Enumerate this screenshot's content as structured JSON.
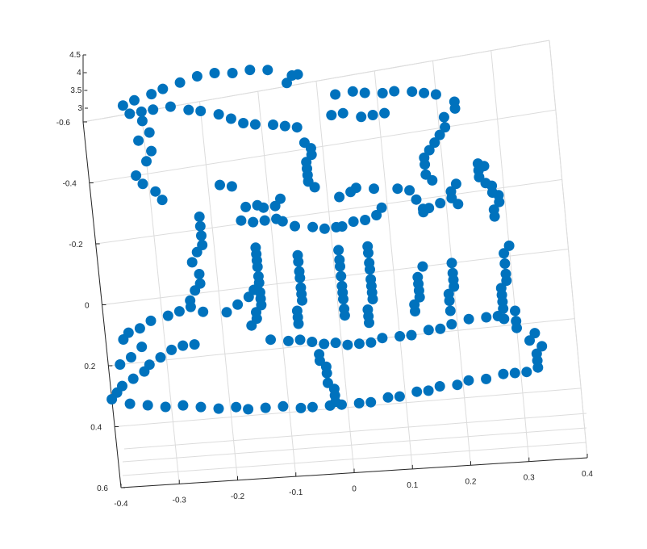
{
  "chart_data": {
    "type": "scatter",
    "title": "",
    "xlabel": "",
    "ylabel": "",
    "zlabel": "",
    "grid": true,
    "marker_color": "#0072BD",
    "axis_color": "#262626",
    "grid_color": "#dcdcdc",
    "xlim": [
      -0.4,
      0.4
    ],
    "ylim": [
      -0.6,
      0.6
    ],
    "zlim": [
      3,
      4.5
    ],
    "x_ticks": [
      {
        "v": 0.4,
        "label": "0.4"
      },
      {
        "v": 0.3,
        "label": "0.3"
      },
      {
        "v": 0.2,
        "label": "0.2"
      },
      {
        "v": 0.1,
        "label": "0.1"
      },
      {
        "v": 0,
        "label": "0"
      },
      {
        "v": -0.1,
        "label": "-0.1"
      },
      {
        "v": -0.2,
        "label": "-0.2"
      },
      {
        "v": -0.3,
        "label": "-0.3"
      },
      {
        "v": -0.4,
        "label": "-0.4"
      }
    ],
    "y_ticks": [
      {
        "v": -0.6,
        "label": "-0.6"
      },
      {
        "v": -0.4,
        "label": "-0.4"
      },
      {
        "v": -0.2,
        "label": "-0.2"
      },
      {
        "v": 0,
        "label": "0"
      },
      {
        "v": 0.2,
        "label": "0.2"
      },
      {
        "v": 0.4,
        "label": "0.4"
      },
      {
        "v": 0.6,
        "label": "0.6"
      }
    ],
    "z_ticks": [
      {
        "v": 3,
        "label": "3"
      },
      {
        "v": 3.5,
        "label": "3.5"
      },
      {
        "v": 4,
        "label": "4"
      },
      {
        "v": 4.5,
        "label": "4.5"
      }
    ],
    "points": [
      [
        0.34,
        0.27
      ],
      [
        0.33,
        0.29
      ],
      [
        0.33,
        0.31
      ],
      [
        0.33,
        0.33
      ],
      [
        0.31,
        0.34
      ],
      [
        0.29,
        0.34
      ],
      [
        0.27,
        0.34
      ],
      [
        0.24,
        0.35
      ],
      [
        0.21,
        0.35
      ],
      [
        0.19,
        0.36
      ],
      [
        0.16,
        0.36
      ],
      [
        0.14,
        0.37
      ],
      [
        0.12,
        0.37
      ],
      [
        0.09,
        0.38
      ],
      [
        0.07,
        0.38
      ],
      [
        0.04,
        0.39
      ],
      [
        0.02,
        0.39
      ],
      [
        -0.01,
        0.39
      ],
      [
        -0.03,
        0.39
      ],
      [
        -0.06,
        0.39
      ],
      [
        -0.08,
        0.39
      ],
      [
        -0.11,
        0.38
      ],
      [
        -0.14,
        0.38
      ],
      [
        -0.17,
        0.38
      ],
      [
        -0.19,
        0.37
      ],
      [
        -0.22,
        0.37
      ],
      [
        -0.25,
        0.36
      ],
      [
        -0.28,
        0.35
      ],
      [
        -0.31,
        0.35
      ],
      [
        -0.34,
        0.34
      ],
      [
        -0.37,
        0.33
      ],
      [
        -0.4,
        0.31
      ],
      [
        -0.39,
        0.29
      ],
      [
        -0.38,
        0.27
      ],
      [
        -0.36,
        0.25
      ],
      [
        -0.34,
        0.23
      ],
      [
        -0.33,
        0.21
      ],
      [
        -0.31,
        0.19
      ],
      [
        -0.29,
        0.17
      ],
      [
        -0.27,
        0.16
      ],
      [
        -0.25,
        0.16
      ],
      [
        -0.02,
        0.38
      ],
      [
        -0.02,
        0.36
      ],
      [
        -0.02,
        0.34
      ],
      [
        -0.03,
        0.32
      ],
      [
        -0.03,
        0.29
      ],
      [
        -0.03,
        0.27
      ],
      [
        -0.04,
        0.25
      ],
      [
        -0.04,
        0.23
      ],
      [
        0.32,
        0.25
      ],
      [
        0.33,
        0.23
      ],
      [
        0.3,
        0.21
      ],
      [
        0.3,
        0.19
      ],
      [
        0.28,
        0.18
      ],
      [
        0.27,
        0.17
      ],
      [
        0.25,
        0.17
      ],
      [
        0.22,
        0.17
      ],
      [
        0.19,
        0.18
      ],
      [
        0.17,
        0.19
      ],
      [
        0.15,
        0.19
      ],
      [
        0.12,
        0.2
      ],
      [
        0.1,
        0.2
      ],
      [
        0.07,
        0.2
      ],
      [
        0.05,
        0.21
      ],
      [
        0.03,
        0.21
      ],
      [
        0.01,
        0.21
      ],
      [
        -0.01,
        0.2
      ],
      [
        -0.03,
        0.2
      ],
      [
        -0.05,
        0.19
      ],
      [
        -0.07,
        0.18
      ],
      [
        -0.09,
        0.18
      ],
      [
        -0.12,
        0.17
      ],
      [
        0.3,
        -0.03
      ],
      [
        0.29,
        -0.01
      ],
      [
        0.29,
        0.02
      ],
      [
        0.29,
        0.05
      ],
      [
        0.29,
        0.07
      ],
      [
        0.28,
        0.09
      ],
      [
        0.28,
        0.11
      ],
      [
        0.28,
        0.13
      ],
      [
        0.28,
        0.15
      ],
      [
        0.3,
        0.16
      ],
      [
        0.2,
        0.0
      ],
      [
        0.2,
        0.03
      ],
      [
        0.2,
        0.05
      ],
      [
        0.2,
        0.07
      ],
      [
        0.19,
        0.09
      ],
      [
        0.19,
        0.11
      ],
      [
        0.19,
        0.14
      ],
      [
        0.15,
        0.0
      ],
      [
        0.14,
        0.03
      ],
      [
        0.14,
        0.05
      ],
      [
        0.14,
        0.07
      ],
      [
        0.14,
        0.09
      ],
      [
        0.13,
        0.11
      ],
      [
        0.13,
        0.13
      ],
      [
        0.06,
        -0.08
      ],
      [
        0.06,
        -0.06
      ],
      [
        0.06,
        -0.03
      ],
      [
        0.06,
        -0.01
      ],
      [
        0.06,
        0.02
      ],
      [
        0.06,
        0.04
      ],
      [
        0.06,
        0.06
      ],
      [
        0.06,
        0.08
      ],
      [
        0.05,
        0.11
      ],
      [
        0.05,
        0.13
      ],
      [
        0.05,
        0.15
      ],
      [
        0.01,
        -0.08
      ],
      [
        0.01,
        -0.05
      ],
      [
        0.01,
        -0.03
      ],
      [
        0.01,
        0.0
      ],
      [
        0.01,
        0.03
      ],
      [
        0.01,
        0.05
      ],
      [
        0.01,
        0.07
      ],
      [
        0.01,
        0.1
      ],
      [
        0.01,
        0.12
      ],
      [
        -0.06,
        -0.08
      ],
      [
        -0.06,
        -0.06
      ],
      [
        -0.06,
        -0.03
      ],
      [
        -0.06,
        -0.01
      ],
      [
        -0.06,
        0.02
      ],
      [
        -0.06,
        0.04
      ],
      [
        -0.06,
        0.06
      ],
      [
        -0.07,
        0.09
      ],
      [
        -0.07,
        0.11
      ],
      [
        -0.07,
        0.13
      ],
      [
        -0.13,
        -0.12
      ],
      [
        -0.13,
        -0.1
      ],
      [
        -0.13,
        -0.08
      ],
      [
        -0.13,
        -0.06
      ],
      [
        -0.13,
        -0.03
      ],
      [
        -0.13,
        -0.01
      ],
      [
        -0.13,
        0.02
      ],
      [
        -0.13,
        0.04
      ],
      [
        -0.13,
        0.06
      ],
      [
        -0.14,
        0.08
      ],
      [
        -0.14,
        0.1
      ],
      [
        -0.15,
        0.12
      ],
      [
        0.26,
        -0.28
      ],
      [
        0.27,
        -0.27
      ],
      [
        0.26,
        -0.26
      ],
      [
        0.26,
        -0.24
      ],
      [
        0.27,
        -0.22
      ],
      [
        0.28,
        -0.21
      ],
      [
        0.28,
        -0.19
      ],
      [
        0.29,
        -0.18
      ],
      [
        0.29,
        -0.16
      ],
      [
        0.28,
        -0.14
      ],
      [
        0.28,
        -0.12
      ],
      [
        0.22,
        -0.23
      ],
      [
        0.21,
        -0.21
      ],
      [
        0.21,
        -0.19
      ],
      [
        0.22,
        -0.17
      ],
      [
        0.19,
        -0.18
      ],
      [
        0.17,
        -0.17
      ],
      [
        0.16,
        -0.16
      ],
      [
        0.16,
        -0.17
      ],
      [
        0.15,
        -0.2
      ],
      [
        0.14,
        -0.23
      ],
      [
        0.12,
        -0.24
      ],
      [
        0.08,
        -0.25
      ],
      [
        0.05,
        -0.26
      ],
      [
        0.04,
        -0.25
      ],
      [
        0.02,
        -0.24
      ],
      [
        0.09,
        -0.19
      ],
      [
        0.08,
        -0.17
      ],
      [
        0.06,
        -0.16
      ],
      [
        0.04,
        -0.16
      ],
      [
        0.02,
        -0.15
      ],
      [
        0.01,
        -0.15
      ],
      [
        -0.01,
        -0.15
      ],
      [
        -0.03,
        -0.16
      ],
      [
        -0.06,
        -0.17
      ],
      [
        -0.08,
        -0.19
      ],
      [
        -0.09,
        -0.2
      ],
      [
        -0.11,
        -0.2
      ],
      [
        -0.13,
        -0.2
      ],
      [
        -0.15,
        -0.21
      ],
      [
        0.18,
        -0.25
      ],
      [
        0.17,
        -0.27
      ],
      [
        0.17,
        -0.3
      ],
      [
        0.17,
        -0.32
      ],
      [
        0.18,
        -0.34
      ],
      [
        0.19,
        -0.36
      ],
      [
        0.2,
        -0.38
      ],
      [
        0.21,
        -0.4
      ],
      [
        0.21,
        -0.43
      ],
      [
        0.23,
        -0.45
      ],
      [
        0.23,
        -0.47
      ],
      [
        0.2,
        -0.5
      ],
      [
        0.18,
        -0.51
      ],
      [
        0.16,
        -0.52
      ],
      [
        0.13,
        -0.53
      ],
      [
        0.11,
        -0.53
      ],
      [
        0.08,
        -0.54
      ],
      [
        0.06,
        -0.55
      ],
      [
        0.03,
        -0.55
      ],
      [
        0.11,
        -0.47
      ],
      [
        0.09,
        -0.47
      ],
      [
        0.07,
        -0.47
      ],
      [
        0.04,
        -0.49
      ],
      [
        0.02,
        -0.49
      ],
      [
        -0.03,
        -0.42
      ],
      [
        -0.02,
        -0.4
      ],
      [
        -0.02,
        -0.38
      ],
      [
        -0.03,
        -0.36
      ],
      [
        -0.03,
        -0.34
      ],
      [
        -0.03,
        -0.32
      ],
      [
        -0.03,
        -0.3
      ],
      [
        -0.02,
        -0.28
      ],
      [
        -0.04,
        -0.47
      ],
      [
        -0.06,
        -0.48
      ],
      [
        -0.08,
        -0.49
      ],
      [
        -0.11,
        -0.5
      ],
      [
        -0.13,
        -0.51
      ],
      [
        -0.15,
        -0.53
      ],
      [
        -0.17,
        -0.55
      ],
      [
        -0.2,
        -0.57
      ],
      [
        -0.22,
        -0.58
      ],
      [
        -0.25,
        -0.6
      ],
      [
        -0.28,
        -0.6
      ],
      [
        -0.3,
        -0.6
      ],
      [
        -0.05,
        -0.61
      ],
      [
        -0.03,
        -0.63
      ],
      [
        -0.04,
        -0.63
      ],
      [
        -0.08,
        -0.66
      ],
      [
        -0.11,
        -0.67
      ],
      [
        -0.14,
        -0.67
      ],
      [
        -0.17,
        -0.68
      ],
      [
        -0.2,
        -0.68
      ],
      [
        -0.23,
        -0.67
      ],
      [
        -0.26,
        -0.66
      ],
      [
        -0.28,
        -0.65
      ],
      [
        -0.31,
        -0.64
      ],
      [
        -0.33,
        -0.63
      ],
      [
        -0.32,
        -0.6
      ],
      [
        -0.3,
        -0.57
      ],
      [
        -0.29,
        -0.53
      ],
      [
        -0.31,
        -0.51
      ],
      [
        -0.29,
        -0.47
      ],
      [
        -0.3,
        -0.44
      ],
      [
        -0.32,
        -0.4
      ],
      [
        -0.31,
        -0.37
      ],
      [
        -0.29,
        -0.34
      ],
      [
        -0.28,
        -0.31
      ],
      [
        -0.18,
        -0.33
      ],
      [
        -0.16,
        -0.32
      ],
      [
        -0.08,
        -0.26
      ],
      [
        -0.09,
        -0.24
      ],
      [
        -0.11,
        -0.24
      ],
      [
        -0.12,
        -0.25
      ],
      [
        -0.14,
        -0.25
      ],
      [
        -0.22,
        -0.24
      ],
      [
        -0.22,
        -0.21
      ],
      [
        -0.22,
        -0.18
      ],
      [
        -0.22,
        -0.15
      ],
      [
        -0.23,
        -0.13
      ],
      [
        -0.24,
        -0.1
      ],
      [
        -0.23,
        -0.06
      ],
      [
        -0.23,
        -0.03
      ],
      [
        -0.24,
        -0.01
      ],
      [
        -0.25,
        0.02
      ],
      [
        -0.25,
        0.04
      ],
      [
        -0.23,
        0.06
      ],
      [
        -0.19,
        0.07
      ],
      [
        -0.17,
        0.05
      ],
      [
        -0.15,
        0.03
      ],
      [
        -0.14,
        0.01
      ],
      [
        -0.27,
        0.05
      ],
      [
        -0.29,
        0.06
      ],
      [
        -0.32,
        0.07
      ],
      [
        -0.34,
        0.09
      ],
      [
        -0.36,
        0.1
      ],
      [
        -0.37,
        0.12
      ],
      [
        -0.34,
        0.15
      ],
      [
        -0.36,
        0.18
      ],
      [
        -0.38,
        0.2
      ]
    ]
  }
}
